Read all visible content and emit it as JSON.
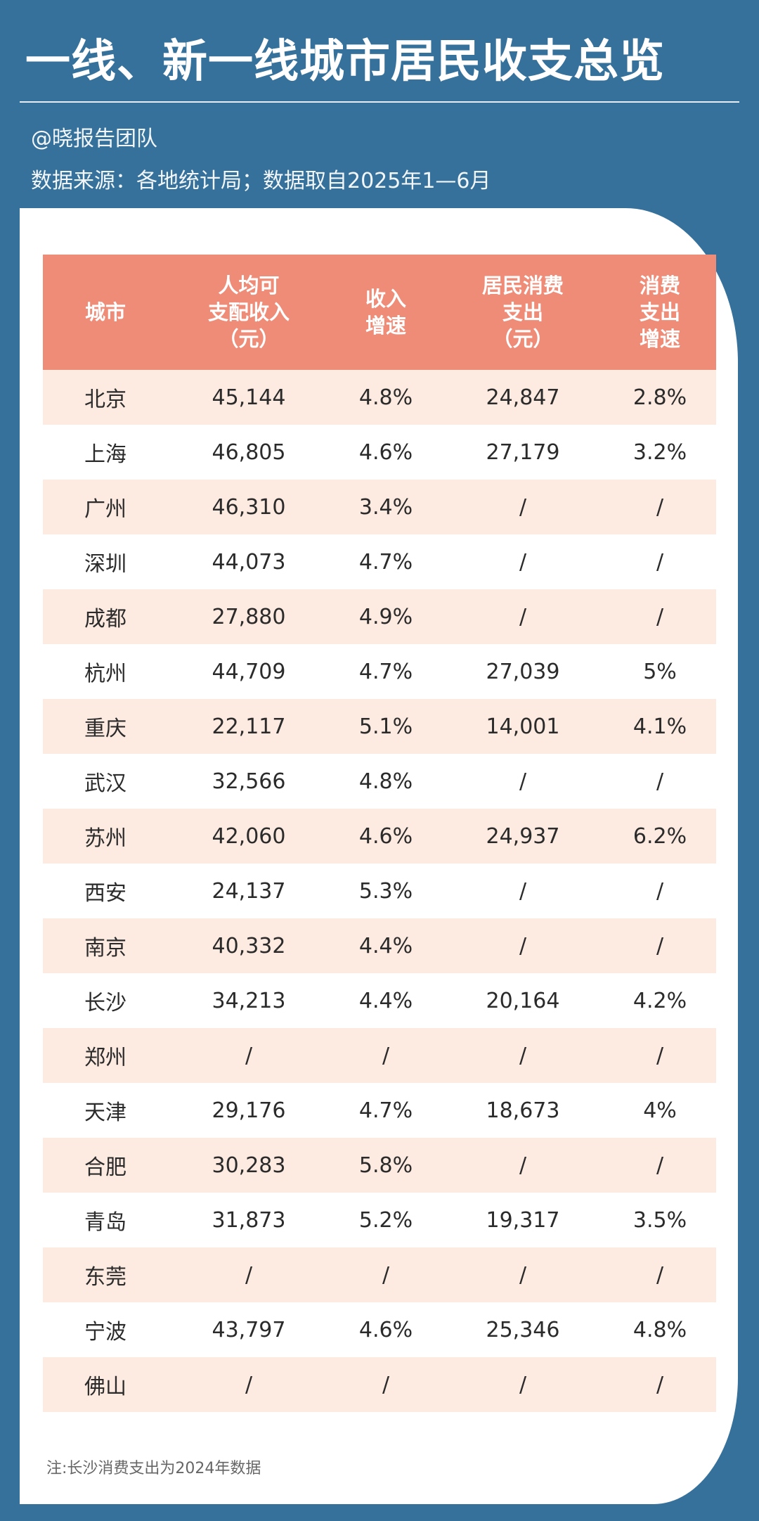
{
  "header": {
    "title": "一线、新一线城市居民收支总览",
    "author": "@晓报告团队",
    "source": "数据来源：各地统计局；数据取自2025年1—6月"
  },
  "colors": {
    "background": "#36719b",
    "header_row": "#ef8c78",
    "striped_row": "#fdeae0"
  },
  "table": {
    "columns": [
      [
        "城市"
      ],
      [
        "人均可",
        "支配收入",
        "（元）"
      ],
      [
        "收入",
        "增速"
      ],
      [
        "居民消费",
        "支出",
        "（元）"
      ],
      [
        "消费",
        "支出",
        "增速"
      ]
    ],
    "rows": [
      [
        "北京",
        "45,144",
        "4.8%",
        "24,847",
        "2.8%"
      ],
      [
        "上海",
        "46,805",
        "4.6%",
        "27,179",
        "3.2%"
      ],
      [
        "广州",
        "46,310",
        "3.4%",
        "/",
        "/"
      ],
      [
        "深圳",
        "44,073",
        "4.7%",
        "/",
        "/"
      ],
      [
        "成都",
        "27,880",
        "4.9%",
        "/",
        "/"
      ],
      [
        "杭州",
        "44,709",
        "4.7%",
        "27,039",
        "5%"
      ],
      [
        "重庆",
        "22,117",
        "5.1%",
        "14,001",
        "4.1%"
      ],
      [
        "武汉",
        "32,566",
        "4.8%",
        "/",
        "/"
      ],
      [
        "苏州",
        "42,060",
        "4.6%",
        "24,937",
        "6.2%"
      ],
      [
        "西安",
        "24,137",
        "5.3%",
        "/",
        "/"
      ],
      [
        "南京",
        "40,332",
        "4.4%",
        "/",
        "/"
      ],
      [
        "长沙",
        "34,213",
        "4.4%",
        "20,164",
        "4.2%"
      ],
      [
        "郑州",
        "/",
        "/",
        "/",
        "/"
      ],
      [
        "天津",
        "29,176",
        "4.7%",
        "18,673",
        "4%"
      ],
      [
        "合肥",
        "30,283",
        "5.8%",
        "/",
        "/"
      ],
      [
        "青岛",
        "31,873",
        "5.2%",
        "19,317",
        "3.5%"
      ],
      [
        "东莞",
        "/",
        "/",
        "/",
        "/"
      ],
      [
        "宁波",
        "43,797",
        "4.6%",
        "25,346",
        "4.8%"
      ],
      [
        "佛山",
        "/",
        "/",
        "/",
        "/"
      ]
    ]
  },
  "note": "注:长沙消费支出为2024年数据"
}
